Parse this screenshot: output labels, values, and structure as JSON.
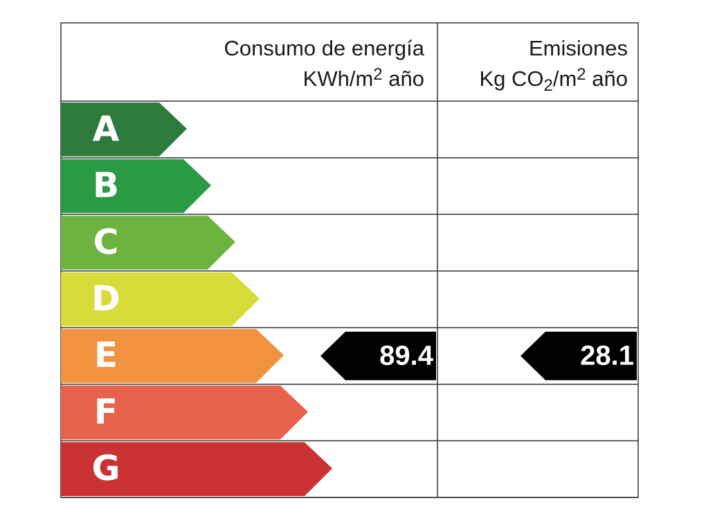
{
  "header": {
    "energy": {
      "title": "Consumo de energía",
      "unit": {
        "base": "KWh/m",
        "sup": "2",
        "rest": " año"
      }
    },
    "emissions": {
      "title": "Emisiones",
      "unit": {
        "base": "Kg CO",
        "sub": "2",
        "mid": "/m",
        "sup": "2",
        "rest": " año"
      }
    }
  },
  "ratings": [
    {
      "letter": "A",
      "color": "#2e7a3c"
    },
    {
      "letter": "B",
      "color": "#2a9a45"
    },
    {
      "letter": "C",
      "color": "#6cb33f"
    },
    {
      "letter": "D",
      "color": "#d8dc38"
    },
    {
      "letter": "E",
      "color": "#f0923f"
    },
    {
      "letter": "F",
      "color": "#e8614c"
    },
    {
      "letter": "G",
      "color": "#cb3235"
    }
  ],
  "energy": {
    "value": "89.4",
    "rating": "E"
  },
  "emissions": {
    "value": "28.1",
    "rating": "E"
  }
}
